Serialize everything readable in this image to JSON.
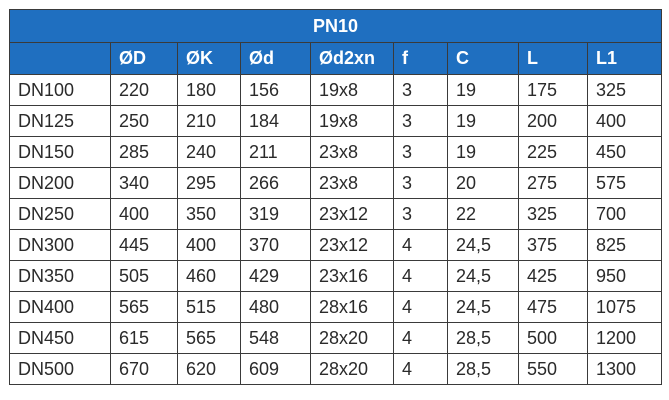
{
  "table": {
    "title": "PN10",
    "columns": [
      "ØD",
      "ØK",
      "Ød",
      "Ød2xn",
      "f",
      "C",
      "L",
      "L1"
    ],
    "rows": [
      [
        "DN100",
        "220",
        "180",
        "156",
        "19x8",
        "3",
        "19",
        "175",
        "325"
      ],
      [
        "DN125",
        "250",
        "210",
        "184",
        "19x8",
        "3",
        "19",
        "200",
        "400"
      ],
      [
        "DN150",
        "285",
        "240",
        "211",
        "23x8",
        "3",
        "19",
        "225",
        "450"
      ],
      [
        "DN200",
        "340",
        "295",
        "266",
        "23x8",
        "3",
        "20",
        "275",
        "575"
      ],
      [
        "DN250",
        "400",
        "350",
        "319",
        "23x12",
        "3",
        "22",
        "325",
        "700"
      ],
      [
        "DN300",
        "445",
        "400",
        "370",
        "23x12",
        "4",
        "24,5",
        "375",
        "825"
      ],
      [
        "DN350",
        "505",
        "460",
        "429",
        "23x16",
        "4",
        "24,5",
        "425",
        "950"
      ],
      [
        "DN400",
        "565",
        "515",
        "480",
        "28x16",
        "4",
        "24,5",
        "475",
        "1075"
      ],
      [
        "DN450",
        "615",
        "565",
        "548",
        "28x20",
        "4",
        "28,5",
        "500",
        "1200"
      ],
      [
        "DN500",
        "670",
        "620",
        "609",
        "28x20",
        "4",
        "28,5",
        "550",
        "1300"
      ]
    ]
  }
}
